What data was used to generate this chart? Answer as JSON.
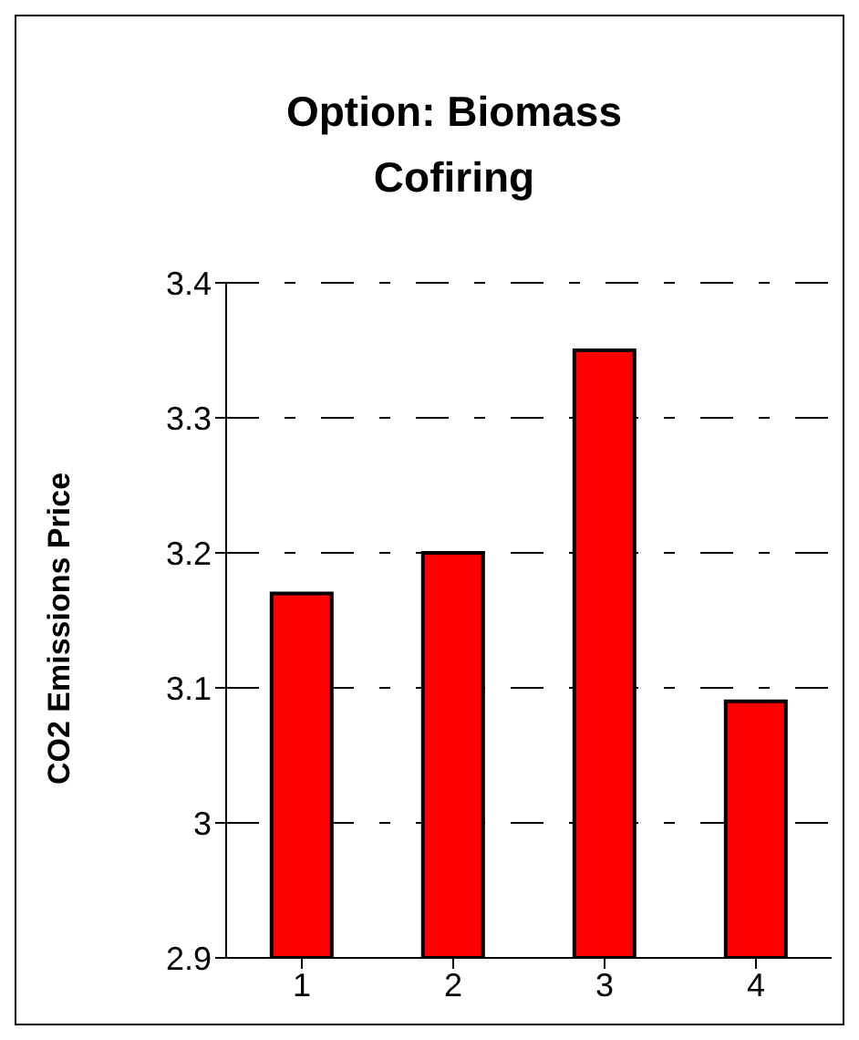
{
  "chart_data": {
    "type": "bar",
    "title": "Option: Biomass Cofiring",
    "ylabel": "CO2 Emissions Price",
    "categories": [
      "1",
      "2",
      "3",
      "4"
    ],
    "values": [
      3.17,
      3.2,
      3.35,
      3.09
    ],
    "color": "#ff0000",
    "ylim": [
      2.9,
      3.4
    ],
    "yticks": [
      2.9,
      3,
      3.1,
      3.2,
      3.3,
      3.4
    ],
    "grid": "y"
  }
}
